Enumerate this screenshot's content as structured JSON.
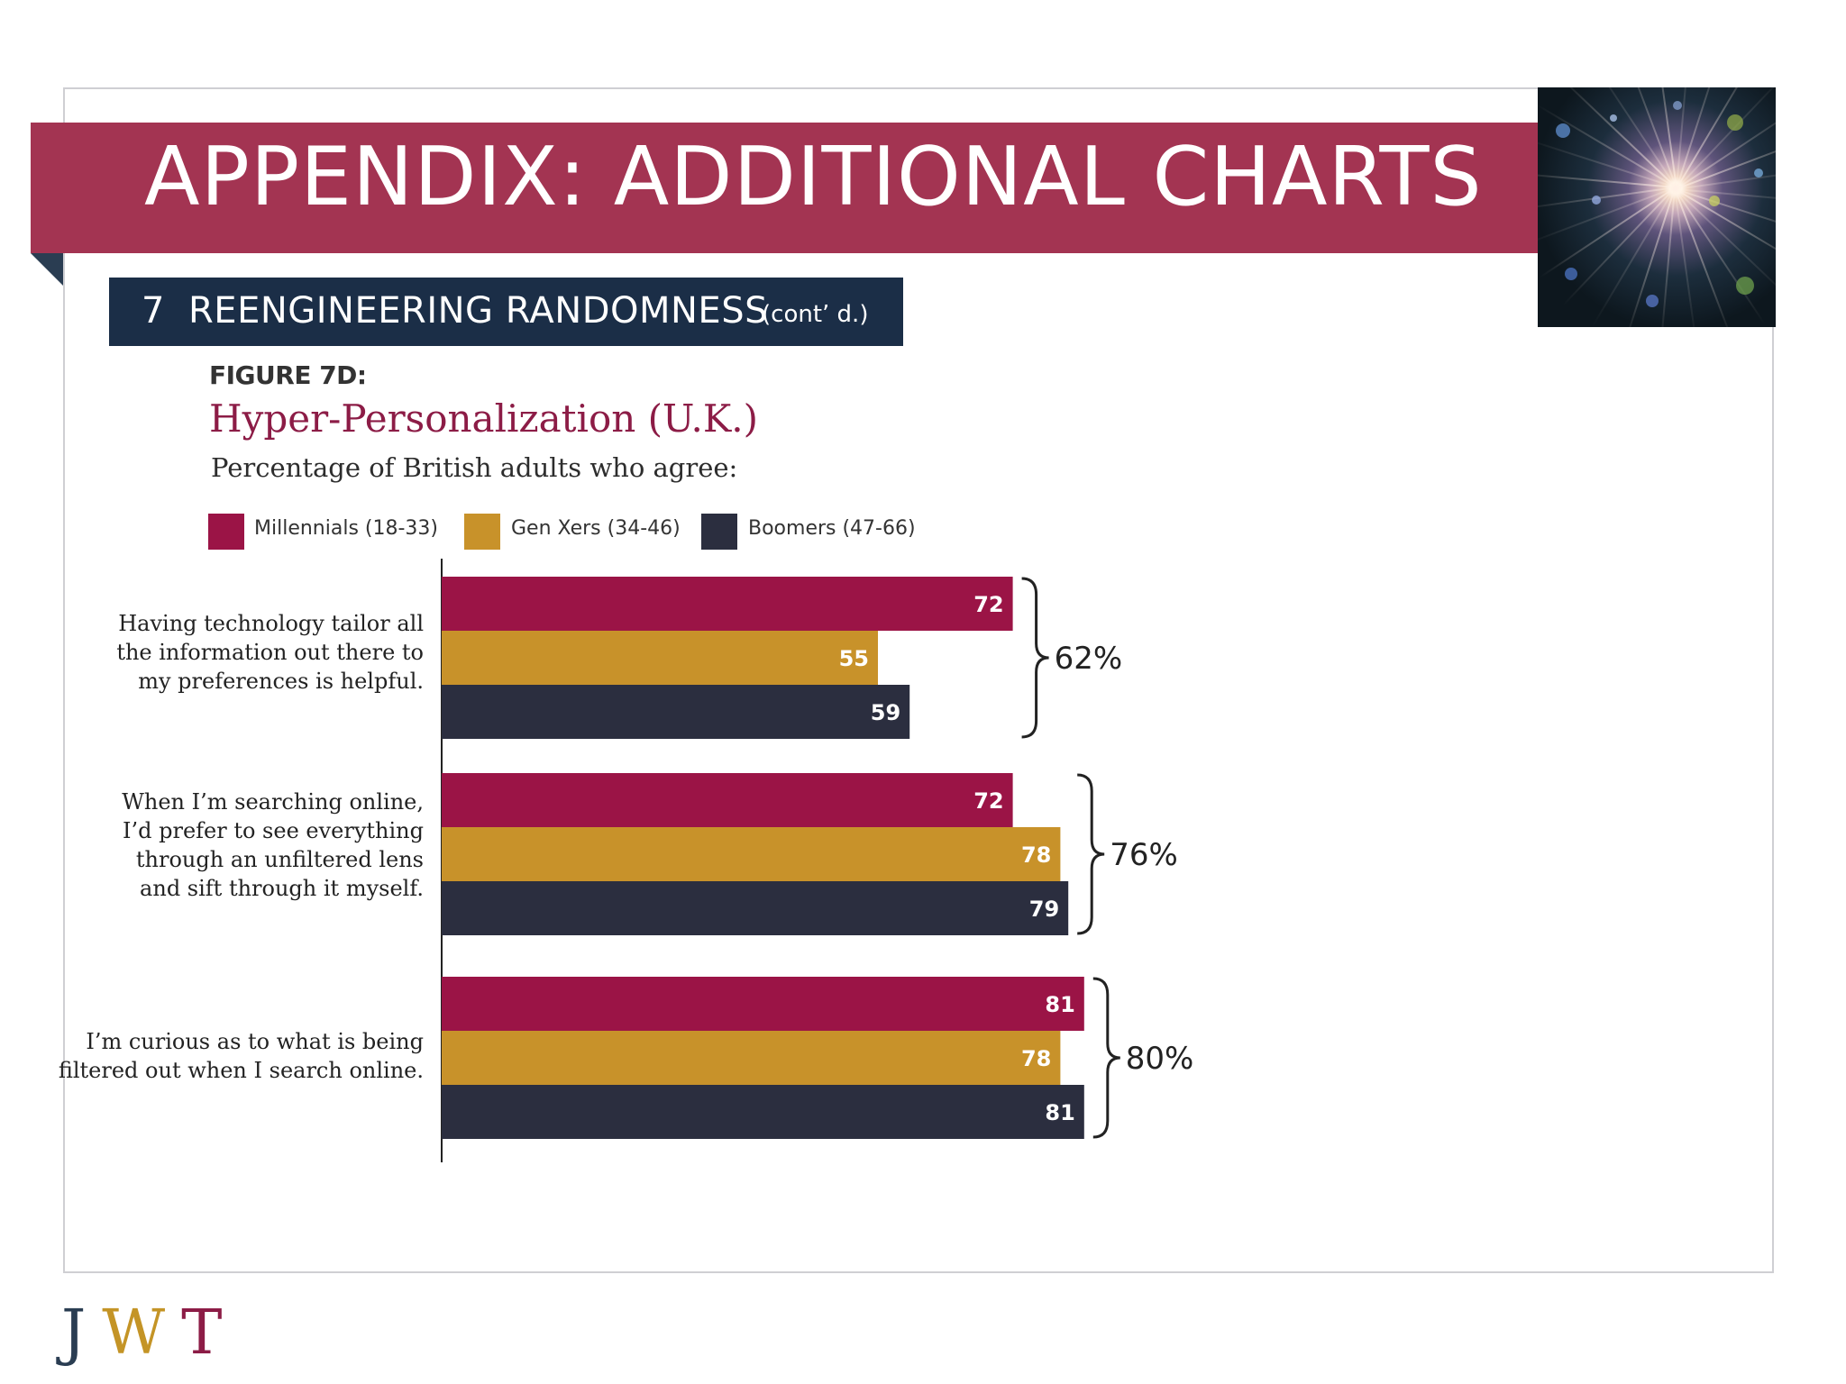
{
  "page": {
    "banner_title": "APPENDIX: ADDITIONAL CHARTS",
    "section_number": "7",
    "section_title": "REENGINEERING RANDOMNESS",
    "section_suffix": "(cont’ d.)",
    "figure_label": "FIGURE 7D:",
    "figure_title": "Hyper-Personalization (U.K.)",
    "figure_subtitle": "Percentage of British adults who agree:",
    "logo": {
      "j": "J",
      "w": "W",
      "t": "T"
    }
  },
  "colors": {
    "banner": "#a33452",
    "section_bar": "#1b2e47",
    "millennials": "#9b1446",
    "gen_x": "#c8922a",
    "boomers": "#2b2e3f"
  },
  "chart_data": {
    "type": "bar",
    "orientation": "horizontal",
    "title": "Hyper-Personalization (U.K.)",
    "subtitle": "Percentage of British adults who agree:",
    "categories": [
      [
        "Having technology tailor all",
        "the information out there to",
        "my preferences is helpful."
      ],
      [
        "When I’m searching online,",
        "I’d prefer to see everything",
        "through an unfiltered lens",
        "and sift through it myself."
      ],
      [
        "I’m curious as to what is being",
        "filtered out when I search online."
      ]
    ],
    "series": [
      {
        "name": "Millennials (18-33)",
        "values": [
          72,
          72,
          81
        ]
      },
      {
        "name": "Gen Xers (34-46)",
        "values": [
          55,
          78,
          78
        ]
      },
      {
        "name": "Boomers (47-66)",
        "values": [
          59,
          79,
          81
        ]
      }
    ],
    "totals": [
      "62%",
      "76%",
      "80%"
    ],
    "legend_position": "top",
    "xlim": [
      0,
      100
    ],
    "grid": false
  }
}
